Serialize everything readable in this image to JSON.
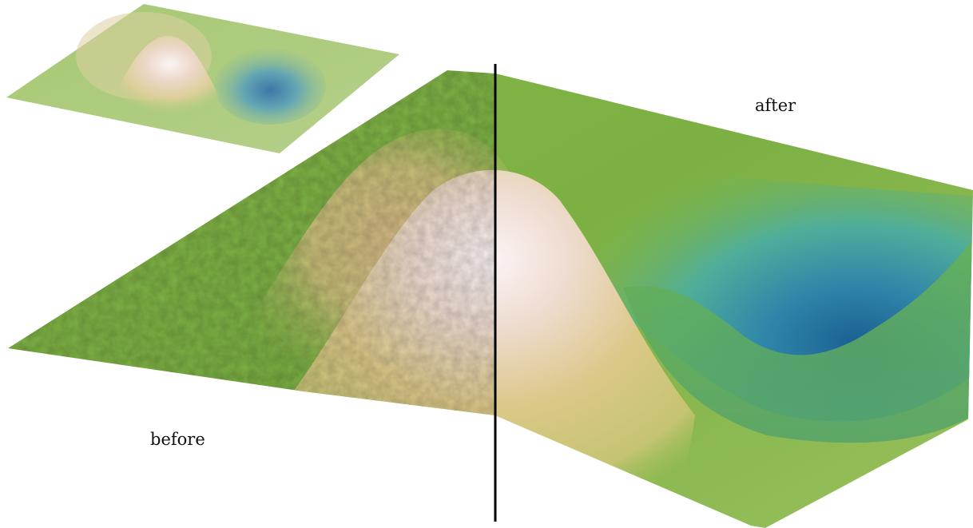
{
  "labels": {
    "before": "before",
    "after": "after"
  },
  "colors": {
    "background": "#ffffff",
    "terrain_green": "#7cb043",
    "terrain_light_green": "#a8c46a",
    "peak_tan": "#d9c27c",
    "peak_white": "#fbf4f4",
    "valley_teal": "#4fae9a",
    "valley_blue": "#1b5f93",
    "divider": "#000000"
  },
  "views": [
    {
      "name": "inset-overview",
      "surface": "smooth"
    },
    {
      "name": "main-surface",
      "left_half": "noisy",
      "right_half": "smooth"
    }
  ]
}
